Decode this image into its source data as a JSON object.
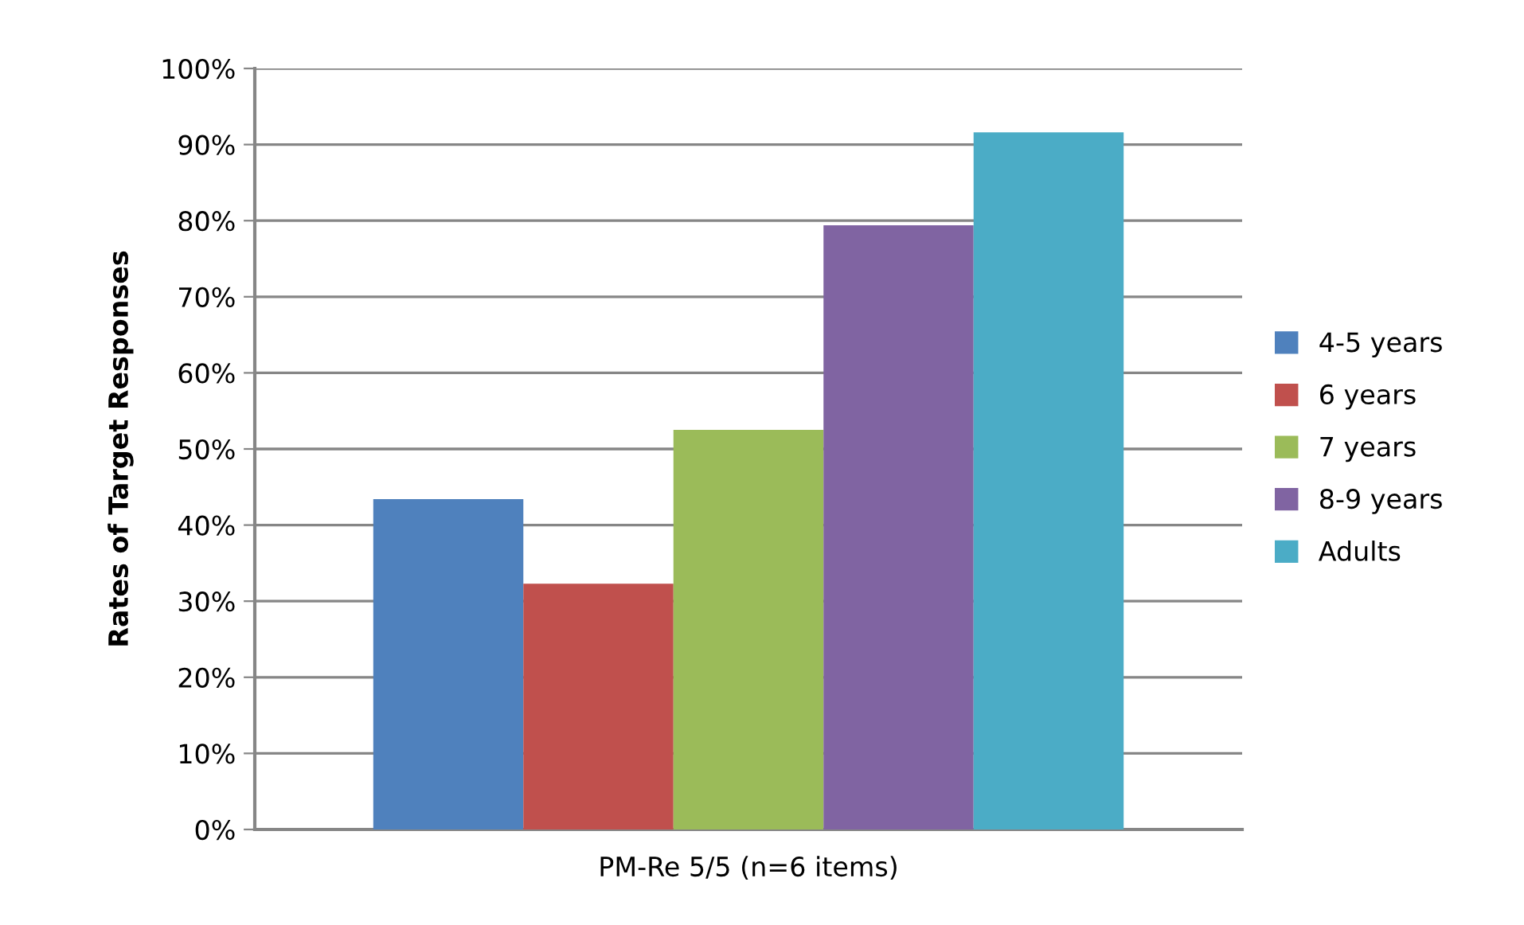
{
  "chart_data": {
    "type": "bar",
    "ylabel": "Rates of Target Responses",
    "categories": [
      "PM-Re 5/5 (n=6 items)"
    ],
    "series": [
      {
        "name": "4-5 years",
        "color": "#4f81bd",
        "values": [
          43.4
        ]
      },
      {
        "name": "6 years",
        "color": "#c0504d",
        "values": [
          32.3
        ]
      },
      {
        "name": "7 years",
        "color": "#9bbb59",
        "values": [
          52.5
        ]
      },
      {
        "name": "8-9 years",
        "color": "#8064a2",
        "values": [
          79.4
        ]
      },
      {
        "name": "Adults",
        "color": "#4bacc6",
        "values": [
          91.6
        ]
      }
    ],
    "ylim": [
      0,
      100
    ],
    "yticks": [
      {
        "value": 0,
        "label": "0%"
      },
      {
        "value": 10,
        "label": "10%"
      },
      {
        "value": 20,
        "label": "20%"
      },
      {
        "value": 30,
        "label": "30%"
      },
      {
        "value": 40,
        "label": "40%"
      },
      {
        "value": 50,
        "label": "50%"
      },
      {
        "value": 60,
        "label": "60%"
      },
      {
        "value": 70,
        "label": "70%"
      },
      {
        "value": 80,
        "label": "80%"
      },
      {
        "value": 90,
        "label": "90%"
      },
      {
        "value": 100,
        "label": "100%"
      }
    ],
    "grid": "y",
    "legend": "right"
  }
}
